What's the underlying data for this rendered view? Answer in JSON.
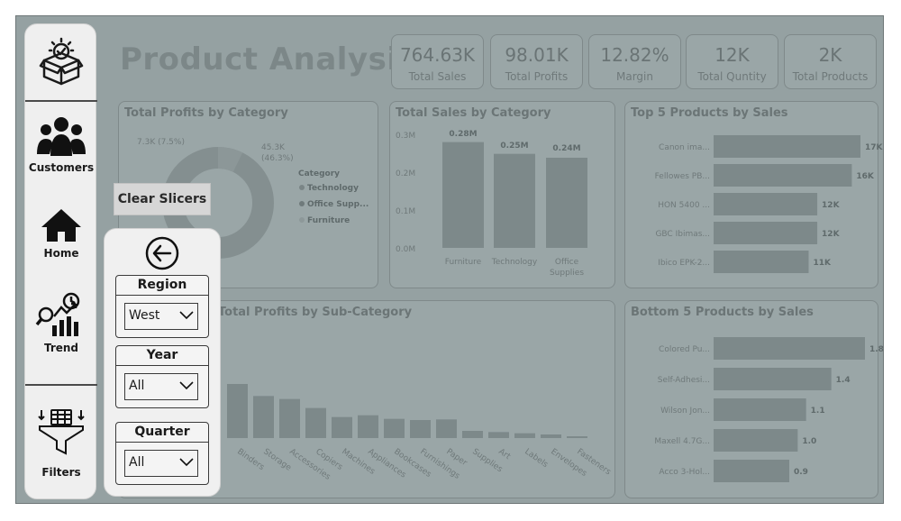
{
  "dashboard": {
    "title": "Product Analysis",
    "kpis": [
      {
        "value": "764.63K",
        "label": "Total Sales"
      },
      {
        "value": "98.01K",
        "label": "Total Profits"
      },
      {
        "value": "12.82%",
        "label": "Margin"
      },
      {
        "value": "12K",
        "label": "Total Quntity"
      },
      {
        "value": "2K",
        "label": "Total Products"
      }
    ]
  },
  "panels": {
    "profits_by_category": {
      "title": "Total Profits by Category",
      "slice_label_1": "7.3K (7.5%)",
      "slice_label_2a": "45.3K",
      "slice_label_2b": "(46.3%)",
      "legend_title": "Category",
      "legend": [
        "Technology",
        "Office Supp...",
        "Furniture"
      ]
    },
    "sales_by_category": {
      "title": "Total Sales by Category",
      "yticks": [
        "0.3M",
        "0.2M",
        "0.1M",
        "0.0M"
      ],
      "bar_labels": [
        "0.28M",
        "0.25M",
        "0.24M"
      ],
      "categories": [
        "Furniture",
        "Technology",
        "Office",
        "Supplies"
      ]
    },
    "top5": {
      "title": "Top 5 Products by Sales",
      "names": [
        "Canon ima...",
        "Fellowes PB...",
        "HON 5400 ...",
        "GBC Ibimas...",
        "Ibico EPK-2..."
      ],
      "labels": [
        "17K",
        "16K",
        "12K",
        "12K",
        "11K"
      ]
    },
    "subcategory": {
      "title": "Total Profits by Sub-Category",
      "categories": [
        "Binders",
        "Storage",
        "Accessories",
        "Copiers",
        "Machines",
        "Appliances",
        "Bookcases",
        "Furnishings",
        "Paper",
        "Supplies",
        "Art",
        "Labels",
        "Envelopes",
        "Fasteners"
      ]
    },
    "bottom5": {
      "title": "Bottom 5 Products by Sales",
      "names": [
        "Colored Pu...",
        "Self-Adhesi...",
        "Wilson Jon...",
        "Maxell 4.7G...",
        "Acco 3-Hol..."
      ],
      "labels": [
        "1.8",
        "1.4",
        "1.1",
        "1.0",
        "0.9"
      ]
    }
  },
  "sidebar": {
    "items": [
      {
        "label": "Customers",
        "icon": "customers-icon"
      },
      {
        "label": "Home",
        "icon": "home-icon"
      },
      {
        "label": "Trend",
        "icon": "trend-icon"
      },
      {
        "label": "Filters",
        "icon": "filter-funnel-icon"
      }
    ],
    "logo_icon": "product-box-icon"
  },
  "clear_slicers": "Clear Slicers",
  "filters": {
    "back_icon": "back-arrow-icon",
    "slicers": [
      {
        "label": "Region",
        "value": "West"
      },
      {
        "label": "Year",
        "value": "All"
      },
      {
        "label": "Quarter",
        "value": "All"
      }
    ]
  },
  "colors": {
    "dim_background": "#95a1a2",
    "panel": "#9aa6a7",
    "bar": "#7d898a",
    "sidebar": "#efefef",
    "text_dark": "#1a1a1a"
  },
  "chart_data": [
    {
      "type": "pie",
      "title": "Total Profits by Category",
      "categories": [
        "Technology",
        "Office Supplies",
        "Furniture"
      ],
      "values": [
        45.3,
        45.4,
        7.3
      ],
      "units": "K"
    },
    {
      "type": "bar",
      "title": "Total Sales by Category",
      "categories": [
        "Furniture",
        "Technology",
        "Office Supplies"
      ],
      "values": [
        0.28,
        0.25,
        0.24
      ],
      "units": "M",
      "ylim": [
        0,
        0.3
      ]
    },
    {
      "type": "bar",
      "title": "Top 5 Products by Sales",
      "orientation": "horizontal",
      "categories": [
        "Canon ima...",
        "Fellowes PB...",
        "HON 5400 ...",
        "GBC Ibimas...",
        "Ibico EPK-2..."
      ],
      "values": [
        17,
        16,
        12,
        12,
        11
      ],
      "units": "K"
    },
    {
      "type": "bar",
      "title": "Total Profits by Sub-Category",
      "categories": [
        "Binders",
        "Storage",
        "Accessories",
        "Copiers",
        "Machines",
        "Appliances",
        "Bookcases",
        "Furnishings",
        "Paper",
        "Supplies",
        "Art",
        "Labels",
        "Envelopes",
        "Fasteners"
      ],
      "values": [
        9,
        7,
        6.5,
        5,
        3.5,
        3.8,
        3.2,
        3.0,
        3.1,
        1.2,
        1.0,
        0.8,
        0.6,
        0.2
      ]
    },
    {
      "type": "bar",
      "title": "Bottom 5 Products by Sales",
      "orientation": "horizontal",
      "categories": [
        "Colored Pu...",
        "Self-Adhesi...",
        "Wilson Jon...",
        "Maxell 4.7G...",
        "Acco 3-Hol..."
      ],
      "values": [
        1.8,
        1.4,
        1.1,
        1.0,
        0.9
      ]
    }
  ]
}
